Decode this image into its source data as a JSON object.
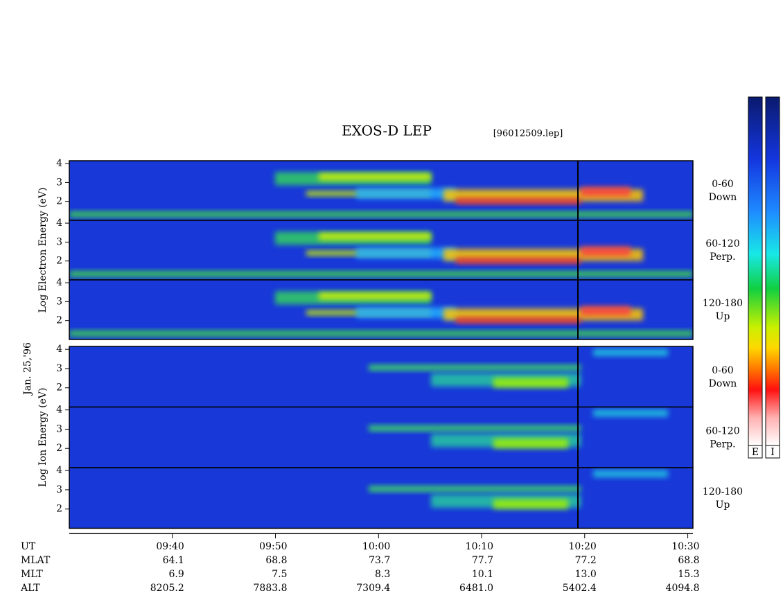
{
  "chart_data": {
    "type": "spectrogram",
    "title": "EXOS-D LEP",
    "subtitle": "[96012509.lep]",
    "date": "Jan. 25,'96",
    "xlim": [
      570,
      630.5
    ],
    "xticks": [
      {
        "value": 580,
        "label": "09:40"
      },
      {
        "value": 590,
        "label": "09:50"
      },
      {
        "value": 600,
        "label": "10:00"
      },
      {
        "value": 610,
        "label": "10:10"
      },
      {
        "value": 620,
        "label": "10:20"
      },
      {
        "value": 630,
        "label": "10:30"
      }
    ],
    "ylim": [
      1,
      4.15
    ],
    "yticks": [
      2,
      3,
      4
    ],
    "groups": [
      {
        "species": "Electron",
        "ylabel": "Log Electron Energy (eV)",
        "panels": [
          {
            "pitch_angle": "0-60",
            "direction": "Down"
          },
          {
            "pitch_angle": "60-120",
            "direction": "Perp."
          },
          {
            "pitch_angle": "120-180",
            "direction": "Up"
          }
        ]
      },
      {
        "species": "Ion",
        "ylabel": "Log Ion Energy (eV)",
        "panels": [
          {
            "pitch_angle": "0-60",
            "direction": "Down"
          },
          {
            "pitch_angle": "60-120",
            "direction": "Perp."
          },
          {
            "pitch_angle": "120-180",
            "direction": "Up"
          }
        ]
      }
    ],
    "colorbars": [
      "E",
      "I"
    ]
  },
  "orbit_table": {
    "header": "UT",
    "rows": [
      {
        "label": "MLAT",
        "values": [
          "64.1",
          "68.8",
          "73.7",
          "77.7",
          "77.2",
          "68.8"
        ]
      },
      {
        "label": "MLT",
        "values": [
          "6.9",
          "7.5",
          "8.3",
          "10.1",
          "13.0",
          "15.3"
        ]
      },
      {
        "label": "ALT",
        "values": [
          "8205.2",
          "7883.8",
          "7309.4",
          "6481.0",
          "5402.4",
          "4094.8"
        ]
      }
    ]
  }
}
